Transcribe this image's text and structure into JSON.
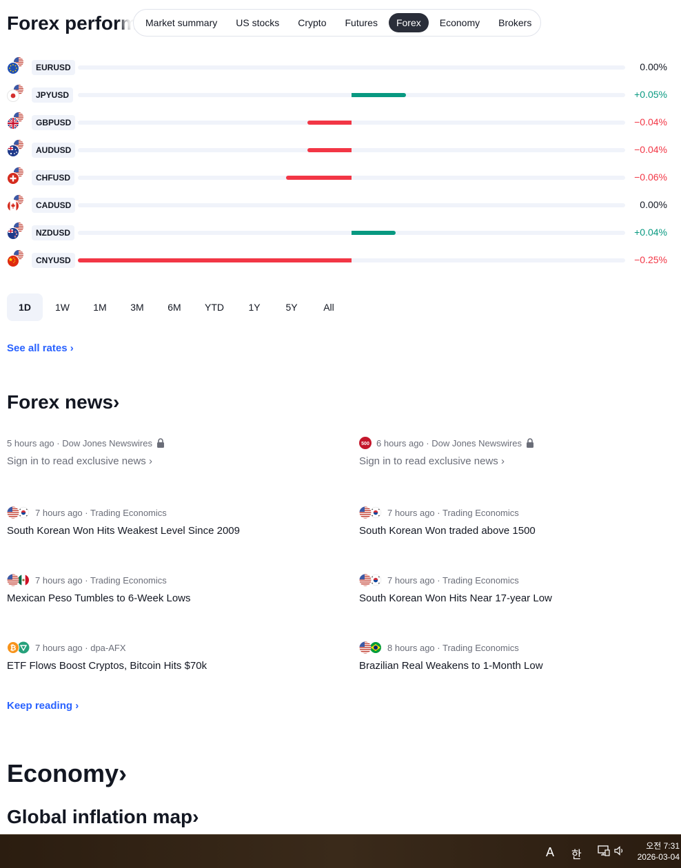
{
  "header": {
    "title": "Forex performance",
    "tabs": [
      "Market summary",
      "US stocks",
      "Crypto",
      "Futures",
      "Forex",
      "Economy",
      "Brokers"
    ],
    "active_tab": "Forex"
  },
  "forex": {
    "rows": [
      {
        "symbol": "EURUSD",
        "change": 0.0,
        "label": "0.00%",
        "flag": "eu-flag-icon"
      },
      {
        "symbol": "JPYUSD",
        "change": 0.05,
        "label": "+0.05%",
        "flag": "jp-flag-icon"
      },
      {
        "symbol": "GBPUSD",
        "change": -0.04,
        "label": "−0.04%",
        "flag": "gb-flag-icon"
      },
      {
        "symbol": "AUDUSD",
        "change": -0.04,
        "label": "−0.04%",
        "flag": "au-flag-icon"
      },
      {
        "symbol": "CHFUSD",
        "change": -0.06,
        "label": "−0.06%",
        "flag": "ch-flag-icon"
      },
      {
        "symbol": "CADUSD",
        "change": 0.0,
        "label": "0.00%",
        "flag": "ca-flag-icon"
      },
      {
        "symbol": "NZDUSD",
        "change": 0.04,
        "label": "+0.04%",
        "flag": "nz-flag-icon"
      },
      {
        "symbol": "CNYUSD",
        "change": -0.25,
        "label": "−0.25%",
        "flag": "cn-flag-icon"
      }
    ],
    "scale_max": 0.25,
    "colors": {
      "positive": "#089981",
      "negative": "#f23645"
    }
  },
  "ranges": {
    "items": [
      "1D",
      "1W",
      "1M",
      "3M",
      "6M",
      "YTD",
      "1Y",
      "5Y",
      "All"
    ],
    "active": "1D"
  },
  "see_all_rates": "See all rates ›",
  "forex_news": {
    "heading": "Forex news›",
    "items": [
      {
        "meta": "5 hours ago · Dow Jones Newswires",
        "headline": "Sign in to read exclusive news ›",
        "locked": true
      },
      {
        "meta": "6 hours ago · Dow Jones Newswires",
        "headline": "Sign in to read exclusive news ›",
        "locked": true,
        "badge": "500"
      },
      {
        "meta": "7 hours ago · Trading Economics",
        "headline": "South Korean Won Hits Weakest Level Since 2009"
      },
      {
        "meta": "7 hours ago · Trading Economics",
        "headline": "South Korean Won traded above 1500"
      },
      {
        "meta": "7 hours ago · Trading Economics",
        "headline": "Mexican Peso Tumbles to 6-Week Lows"
      },
      {
        "meta": "7 hours ago · Trading Economics",
        "headline": "South Korean Won Hits Near 17-year Low"
      },
      {
        "meta": "7 hours ago · dpa-AFX",
        "headline": "ETF Flows Boost Cryptos, Bitcoin Hits $70k"
      },
      {
        "meta": "8 hours ago · Trading Economics",
        "headline": "Brazilian Real Weakens to 1-Month Low"
      }
    ],
    "keep_reading": "Keep reading ›"
  },
  "economy": {
    "heading": "Economy›",
    "subheading": "Global inflation map›"
  },
  "taskbar": {
    "ime_en": "A",
    "ime_ko": "한",
    "time": "오전 7:31",
    "date": "2026-03-04"
  }
}
